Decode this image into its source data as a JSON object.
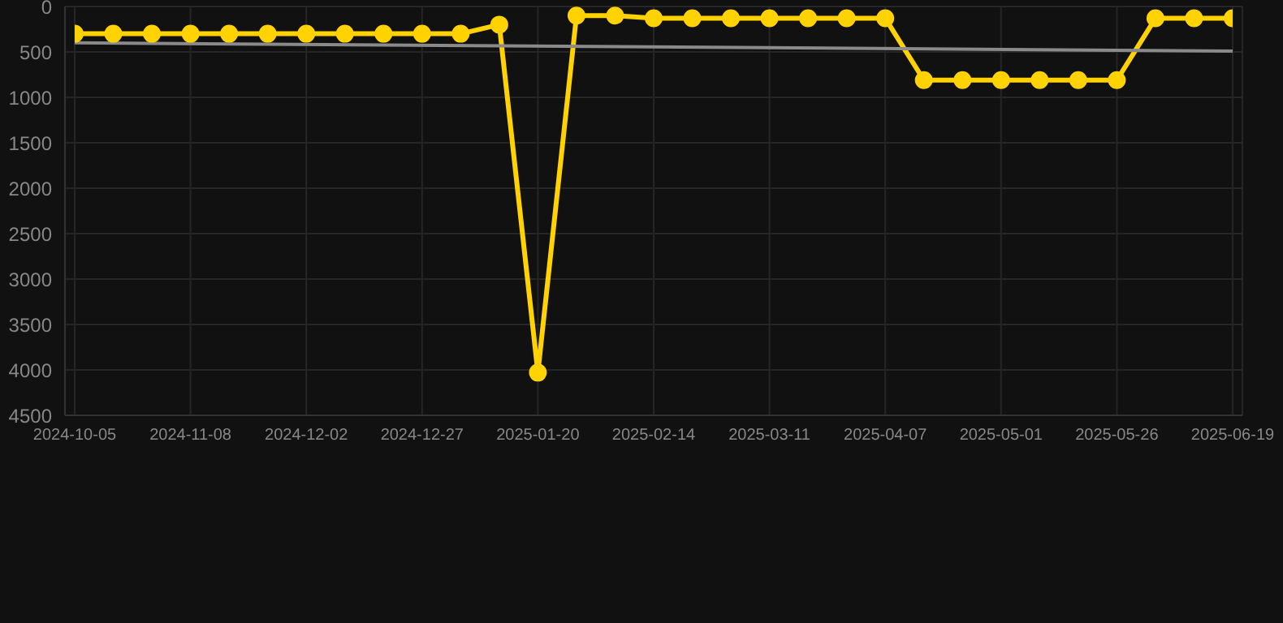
{
  "chart_data": {
    "type": "line",
    "categories": [
      "2024-10-05",
      null,
      null,
      "2024-11-08",
      null,
      null,
      "2024-12-02",
      null,
      null,
      "2024-12-27",
      null,
      null,
      "2025-01-20",
      null,
      null,
      "2025-02-14",
      null,
      null,
      "2025-03-11",
      null,
      null,
      "2025-04-07",
      null,
      null,
      "2025-05-01",
      null,
      null,
      "2025-05-26",
      null,
      null,
      "2025-06-19"
    ],
    "series": [
      {
        "color": "#ffd200",
        "marker": "circle",
        "values": [
          300,
          300,
          300,
          300,
          300,
          300,
          300,
          300,
          300,
          300,
          300,
          200,
          4030,
          100,
          100,
          130,
          130,
          130,
          130,
          130,
          130,
          130,
          810,
          810,
          810,
          810,
          810,
          810,
          130,
          130,
          130
        ]
      },
      {
        "color": "#8a8a8a",
        "marker": "none",
        "values": [
          400,
          null,
          null,
          null,
          null,
          null,
          null,
          null,
          null,
          null,
          null,
          null,
          null,
          null,
          null,
          null,
          null,
          null,
          null,
          null,
          null,
          null,
          null,
          null,
          null,
          null,
          null,
          null,
          null,
          null,
          490
        ]
      }
    ],
    "ylim": [
      4500,
      0
    ],
    "yticks": [
      0,
      500,
      1000,
      1500,
      2000,
      2500,
      3000,
      3500,
      4000,
      4500
    ],
    "grid": true
  }
}
